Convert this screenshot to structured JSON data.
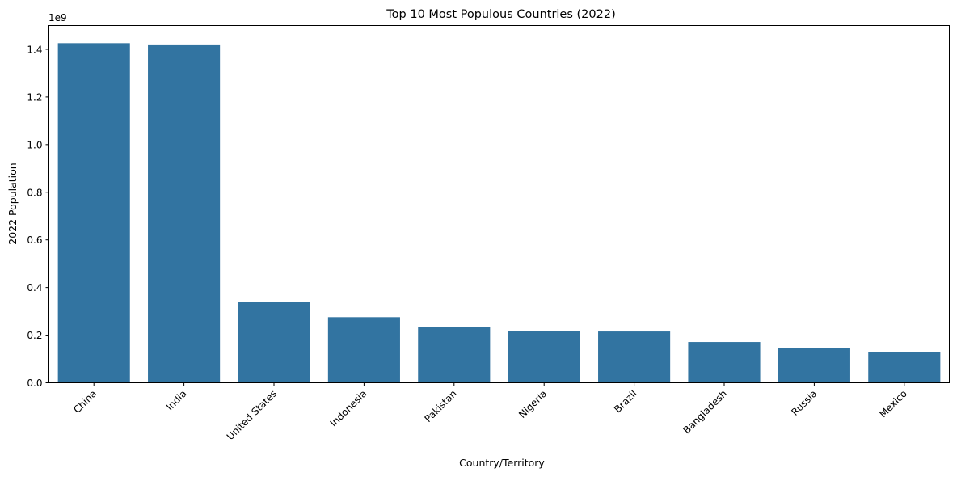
{
  "chart_data": {
    "type": "bar",
    "title": "Top 10 Most Populous Countries (2022)",
    "xlabel": "Country/Territory",
    "ylabel": "2022 Population",
    "y_offset_label": "1e9",
    "categories": [
      "China",
      "India",
      "United States",
      "Indonesia",
      "Pakistan",
      "Nigeria",
      "Brazil",
      "Bangladesh",
      "Russia",
      "Mexico"
    ],
    "values": [
      1425887337,
      1417173173,
      338289857,
      275501339,
      235824862,
      218541212,
      215313498,
      171186372,
      144713314,
      127504125
    ],
    "ylim": [
      0,
      1500000000.0
    ],
    "yticks": [
      0.0,
      0.2,
      0.4,
      0.6,
      0.8,
      1.0,
      1.2,
      1.4
    ],
    "ytick_labels": [
      "0.0",
      "0.2",
      "0.4",
      "0.6",
      "0.8",
      "1.0",
      "1.2",
      "1.4"
    ],
    "tick_scale": 1000000000.0,
    "bar_color": "#3274a1",
    "xtick_rotation_deg": 45,
    "grid": false,
    "legend": "none"
  }
}
